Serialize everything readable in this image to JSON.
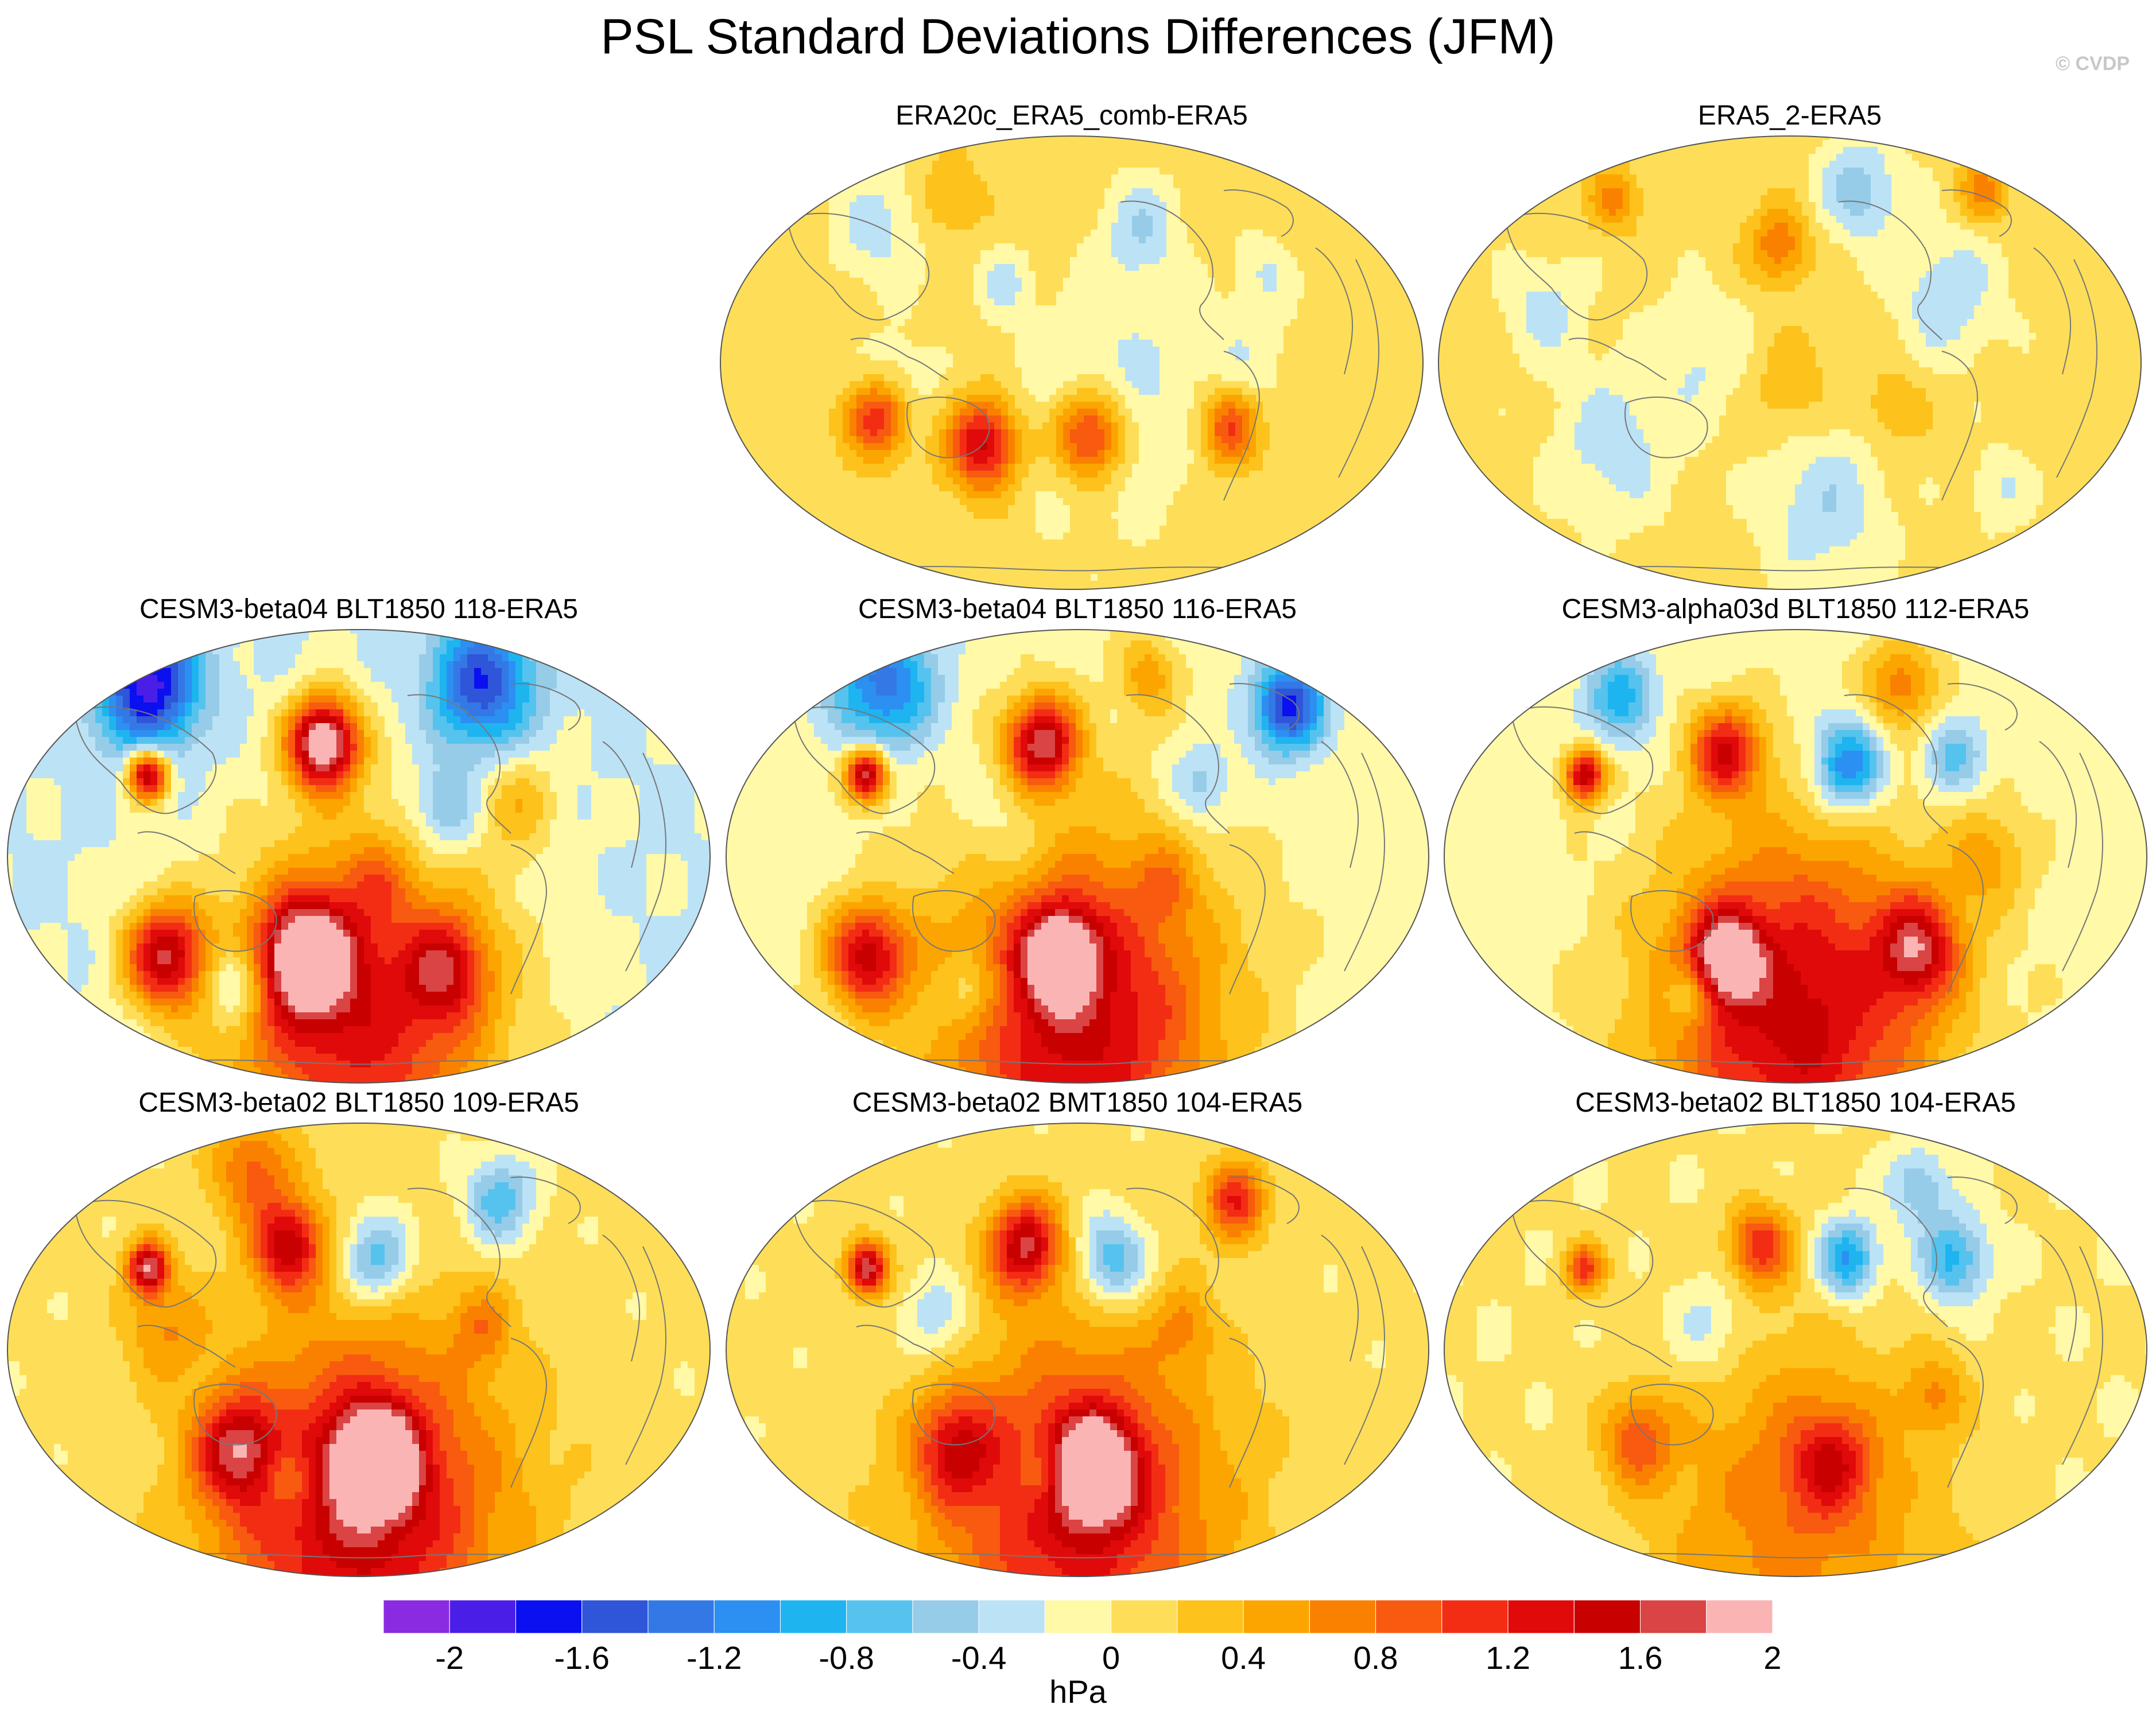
{
  "title": "PSL Standard Deviations Differences (JFM)",
  "watermark": "© CVDP",
  "unit": "hPa",
  "land_color": "#777777",
  "colorbar": {
    "colors": [
      "#8A2BE2",
      "#4B1EE8",
      "#0A10F0",
      "#2F55D9",
      "#3478E6",
      "#2C8FF2",
      "#1EB4F0",
      "#55C3EE",
      "#96CCE8",
      "#BCE2F6",
      "#FFF9A8",
      "#FEDE58",
      "#FDC21C",
      "#FCA500",
      "#FA8100",
      "#F85A10",
      "#F32D14",
      "#E00A0A",
      "#C80000",
      "#DA4444",
      "#FBB4B4"
    ],
    "bounds": [
      -2.2,
      -2.0,
      -1.8,
      -1.6,
      -1.4,
      -1.2,
      -1.0,
      -0.8,
      -0.6,
      -0.4,
      -0.2,
      0,
      0.2,
      0.4,
      0.6,
      0.8,
      1.0,
      1.2,
      1.4,
      1.6,
      1.8,
      2.0
    ],
    "tick_labels": [
      "-2",
      "-1.6",
      "-1.2",
      "-0.8",
      "-0.4",
      "0",
      "0.4",
      "0.8",
      "1.2",
      "1.6",
      "2"
    ],
    "tick_values": [
      -2,
      -1.6,
      -1.2,
      -0.8,
      -0.4,
      0,
      0.4,
      0.8,
      1.2,
      1.6,
      2
    ]
  },
  "panels": [
    {
      "title": "ERA20c_ERA5_comb-ERA5",
      "base": 0.12,
      "blobs": [
        [
          -0.55,
          -0.12,
          0.06,
          1.2
        ],
        [
          -0.25,
          -0.18,
          0.07,
          1.4
        ],
        [
          0.05,
          -0.16,
          0.07,
          1.3
        ],
        [
          0.45,
          -0.14,
          0.06,
          1.0
        ],
        [
          0.1,
          -0.08,
          0.2,
          -0.4
        ],
        [
          0.2,
          0.3,
          0.08,
          -0.45
        ],
        [
          -0.55,
          0.3,
          0.1,
          -0.4
        ],
        [
          0.55,
          0.2,
          0.06,
          -0.3
        ],
        [
          -0.2,
          0.18,
          0.05,
          -0.35
        ],
        [
          -0.5,
          -0.05,
          0.08,
          -0.35
        ],
        [
          0.5,
          0.0,
          0.1,
          -0.25
        ],
        [
          -0.35,
          0.36,
          0.06,
          0.35
        ]
      ]
    },
    {
      "title": "ERA5_2-ERA5",
      "base": 0.08,
      "blobs": [
        [
          -0.03,
          0.26,
          0.06,
          0.7
        ],
        [
          -0.5,
          0.36,
          0.05,
          0.6
        ],
        [
          0.2,
          0.38,
          0.08,
          -0.6
        ],
        [
          0.55,
          0.38,
          0.05,
          0.6
        ],
        [
          0.45,
          0.15,
          0.1,
          -0.45
        ],
        [
          -0.5,
          -0.18,
          0.12,
          -0.4
        ],
        [
          0.1,
          -0.32,
          0.12,
          -0.45
        ],
        [
          0.3,
          -0.1,
          0.06,
          0.35
        ],
        [
          -0.25,
          0.02,
          0.1,
          -0.3
        ],
        [
          -0.7,
          0.12,
          0.08,
          -0.35
        ],
        [
          0.0,
          -0.05,
          0.08,
          0.3
        ],
        [
          0.6,
          -0.28,
          0.06,
          -0.3
        ]
      ]
    },
    {
      "title": "CESM3-beta04 BLT1850 118-ERA5",
      "base": -0.22,
      "blobs": [
        [
          -0.6,
          0.38,
          0.1,
          -1.7
        ],
        [
          0.35,
          0.38,
          0.1,
          -1.4
        ],
        [
          -0.1,
          0.25,
          0.07,
          2.3
        ],
        [
          -0.6,
          0.18,
          0.04,
          1.9
        ],
        [
          -0.55,
          -0.22,
          0.08,
          1.7
        ],
        [
          -0.15,
          -0.22,
          0.09,
          1.9
        ],
        [
          0.25,
          -0.25,
          0.08,
          1.0
        ],
        [
          0.0,
          -0.36,
          0.28,
          1.5
        ],
        [
          -0.35,
          -0.28,
          0.06,
          -0.8
        ],
        [
          0.25,
          0.1,
          0.07,
          -0.6
        ],
        [
          0.45,
          0.12,
          0.08,
          0.5
        ],
        [
          0.05,
          -0.05,
          0.06,
          0.4
        ]
      ]
    },
    {
      "title": "CESM3-beta04 BLT1850 116-ERA5",
      "base": -0.1,
      "blobs": [
        [
          -0.55,
          0.38,
          0.1,
          -1.2
        ],
        [
          0.6,
          0.33,
          0.07,
          -1.6
        ],
        [
          -0.1,
          0.25,
          0.07,
          1.8
        ],
        [
          -0.6,
          0.18,
          0.04,
          1.9
        ],
        [
          -0.6,
          -0.22,
          0.08,
          1.5
        ],
        [
          -0.05,
          -0.22,
          0.07,
          1.7
        ],
        [
          0.0,
          -0.36,
          0.28,
          1.6
        ],
        [
          0.2,
          0.4,
          0.06,
          0.6
        ],
        [
          0.35,
          0.16,
          0.06,
          -0.5
        ],
        [
          -0.2,
          0.05,
          0.1,
          -0.3
        ],
        [
          0.25,
          -0.06,
          0.06,
          0.4
        ],
        [
          -0.3,
          -0.3,
          0.06,
          -0.6
        ]
      ]
    },
    {
      "title": "CESM3-alpha03d BLT1850 112-ERA5",
      "base": -0.1,
      "blobs": [
        [
          -0.2,
          0.23,
          0.07,
          1.4
        ],
        [
          0.15,
          0.2,
          0.07,
          -1.2
        ],
        [
          -0.6,
          0.18,
          0.04,
          1.7
        ],
        [
          -0.2,
          -0.22,
          0.07,
          1.6
        ],
        [
          0.35,
          -0.2,
          0.08,
          1.3
        ],
        [
          0.0,
          -0.35,
          0.28,
          1.6
        ],
        [
          0.3,
          0.38,
          0.07,
          0.8
        ],
        [
          -0.5,
          0.35,
          0.07,
          -0.8
        ],
        [
          0.45,
          0.22,
          0.06,
          -0.6
        ],
        [
          -0.3,
          -0.3,
          0.05,
          -0.7
        ],
        [
          0.55,
          0.0,
          0.08,
          0.5
        ]
      ]
    },
    {
      "title": "CESM3-beta02 BLT1850 109-ERA5",
      "base": 0.05,
      "blobs": [
        [
          -0.2,
          0.23,
          0.07,
          1.4
        ],
        [
          0.05,
          0.2,
          0.07,
          -0.9
        ],
        [
          0.4,
          0.33,
          0.07,
          -0.8
        ],
        [
          -0.6,
          0.18,
          0.04,
          1.7
        ],
        [
          -0.35,
          -0.22,
          0.08,
          1.2
        ],
        [
          0.05,
          -0.24,
          0.08,
          1.9
        ],
        [
          0.0,
          -0.36,
          0.28,
          1.5
        ],
        [
          -0.2,
          -0.28,
          0.05,
          -0.5
        ],
        [
          0.35,
          0.05,
          0.06,
          0.5
        ],
        [
          -0.3,
          0.4,
          0.08,
          0.8
        ],
        [
          -0.55,
          0.05,
          0.08,
          0.5
        ]
      ]
    },
    {
      "title": "CESM3-beta02 BMT1850 104-ERA5",
      "base": 0.05,
      "blobs": [
        [
          -0.15,
          0.23,
          0.07,
          1.5
        ],
        [
          0.1,
          0.2,
          0.07,
          -0.9
        ],
        [
          0.45,
          0.33,
          0.06,
          1.1
        ],
        [
          -0.6,
          0.18,
          0.04,
          1.7
        ],
        [
          -0.35,
          -0.22,
          0.08,
          1.0
        ],
        [
          0.05,
          -0.26,
          0.08,
          1.8
        ],
        [
          0.0,
          -0.36,
          0.28,
          1.3
        ],
        [
          -0.4,
          0.07,
          0.07,
          -0.5
        ],
        [
          0.3,
          0.05,
          0.06,
          0.4
        ],
        [
          -0.1,
          -0.28,
          0.05,
          -0.5
        ]
      ]
    },
    {
      "title": "CESM3-beta02 BLT1850 104-ERA5",
      "base": 0.02,
      "blobs": [
        [
          -0.1,
          0.23,
          0.06,
          1.1
        ],
        [
          0.15,
          0.2,
          0.06,
          -1.1
        ],
        [
          0.45,
          0.2,
          0.07,
          -0.9
        ],
        [
          -0.6,
          0.18,
          0.04,
          1.0
        ],
        [
          0.1,
          -0.25,
          0.08,
          0.9
        ],
        [
          -0.45,
          -0.2,
          0.07,
          0.8
        ],
        [
          0.0,
          -0.36,
          0.28,
          0.7
        ],
        [
          0.4,
          -0.1,
          0.06,
          0.5
        ],
        [
          -0.25,
          0.05,
          0.08,
          -0.4
        ],
        [
          0.35,
          0.36,
          0.06,
          -0.6
        ]
      ]
    }
  ]
}
